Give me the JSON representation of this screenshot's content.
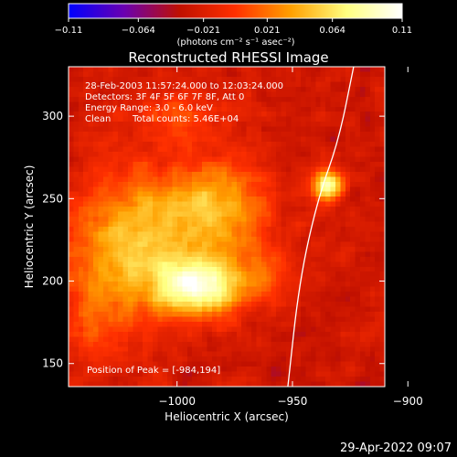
{
  "chart_data": {
    "type": "heatmap",
    "title": "Reconstructed RHESSI Image",
    "xlabel": "Heliocentric X (arcsec)",
    "ylabel": "Heliocentric Y (arcsec)",
    "xlim": [
      -1047,
      -910
    ],
    "ylim": [
      136,
      330
    ],
    "xticks": [
      {
        "value": -1000,
        "label": "−1000"
      },
      {
        "value": -950,
        "label": "−950"
      },
      {
        "value": -900,
        "label": "−900"
      }
    ],
    "yticks": [
      {
        "value": 150,
        "label": "150"
      },
      {
        "value": 200,
        "label": "200"
      },
      {
        "value": 250,
        "label": "250"
      },
      {
        "value": 300,
        "label": "300"
      }
    ],
    "colorbar": {
      "range": [
        -0.11,
        0.11
      ],
      "ticks": [
        {
          "value": -0.11,
          "label": "−0.11"
        },
        {
          "value": -0.064,
          "label": "−0.064"
        },
        {
          "value": -0.021,
          "label": "−0.021"
        },
        {
          "value": 0.021,
          "label": "0.021"
        },
        {
          "value": 0.064,
          "label": "0.064"
        },
        {
          "value": 0.11,
          "label": "0.11"
        }
      ],
      "unit_label": "(photons cm⁻² s⁻¹ asec⁻²)",
      "colors": [
        "#0000ff",
        "#6a00b0",
        "#c01000",
        "#ff3000",
        "#ffa000",
        "#ffff80",
        "#ffffff"
      ]
    },
    "annotations": [
      "28-Feb-2003 11:57:24.000 to 12:03:24.000",
      "Detectors: 3F 4F 5F 6F 7F 8F, Att 0",
      "Energy Range: 3.0 - 6.0 keV",
      "Clean",
      "Total counts: 5.46E+04"
    ],
    "peak_label": "Position of Peak = [-984,194]",
    "peak": {
      "x": -984,
      "y": 194
    },
    "sources": [
      {
        "x": -990,
        "y": 196,
        "sx": 14,
        "sy": 12,
        "amp": 0.11
      },
      {
        "x": -1015,
        "y": 228,
        "sx": 22,
        "sy": 28,
        "amp": 0.075
      },
      {
        "x": -980,
        "y": 245,
        "sx": 15,
        "sy": 20,
        "amp": 0.06
      },
      {
        "x": -935,
        "y": 258,
        "sx": 4.5,
        "sy": 7,
        "amp": 0.115
      },
      {
        "x": -1035,
        "y": 180,
        "sx": 14,
        "sy": 22,
        "amp": 0.035
      },
      {
        "x": -1000,
        "y": 300,
        "sx": 18,
        "sy": 12,
        "amp": 0.028
      },
      {
        "x": -960,
        "y": 205,
        "sx": 9,
        "sy": 12,
        "amp": 0.03
      }
    ],
    "limb_curve": [
      {
        "x": -923.5,
        "y": 330
      },
      {
        "x": -930,
        "y": 285
      },
      {
        "x": -939,
        "y": 250
      },
      {
        "x": -947,
        "y": 200
      },
      {
        "x": -952,
        "y": 136
      }
    ]
  },
  "footer": {
    "timestamp": "29-Apr-2022 09:07"
  }
}
